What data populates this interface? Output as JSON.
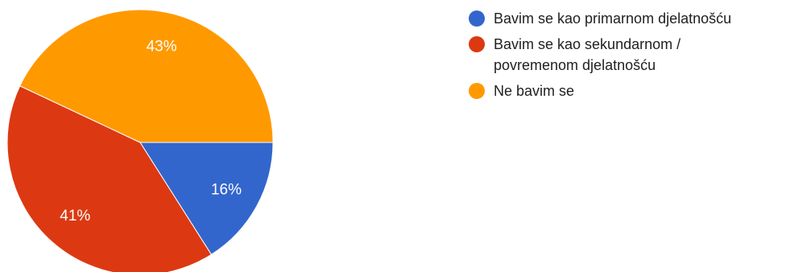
{
  "chart_data": {
    "type": "pie",
    "categories": [
      "Bavim se kao primarnom djelatnošću",
      "Bavim se kao sekundarnom / povremenom djelatnošću",
      "Ne bavim se"
    ],
    "values": [
      16,
      41,
      43
    ],
    "value_labels": [
      "16%",
      "41%",
      "43%"
    ],
    "colors": [
      "#3366cc",
      "#dc3912",
      "#ff9900"
    ],
    "legend_placement": "right",
    "legend_lines": [
      [
        "Bavim se kao primarnom djelatnošću"
      ],
      [
        "Bavim se kao sekundarnom /",
        "povremenom djelatnošću"
      ],
      [
        "Ne bavim se"
      ]
    ]
  }
}
